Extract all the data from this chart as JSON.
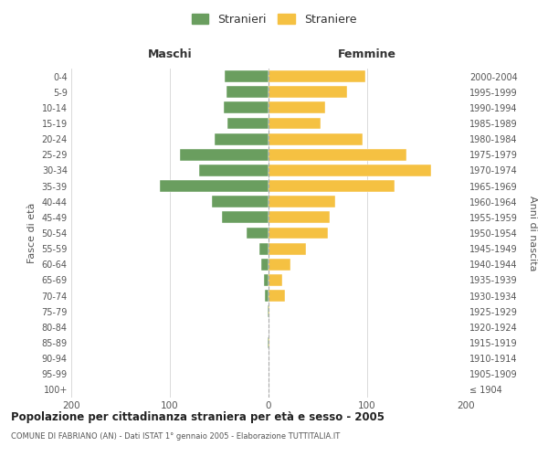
{
  "age_groups": [
    "100+",
    "95-99",
    "90-94",
    "85-89",
    "80-84",
    "75-79",
    "70-74",
    "65-69",
    "60-64",
    "55-59",
    "50-54",
    "45-49",
    "40-44",
    "35-39",
    "30-34",
    "25-29",
    "20-24",
    "15-19",
    "10-14",
    "5-9",
    "0-4"
  ],
  "birth_years": [
    "≤ 1904",
    "1905-1909",
    "1910-1914",
    "1915-1919",
    "1920-1924",
    "1925-1929",
    "1930-1934",
    "1935-1939",
    "1940-1944",
    "1945-1949",
    "1950-1954",
    "1955-1959",
    "1960-1964",
    "1965-1969",
    "1970-1974",
    "1975-1979",
    "1980-1984",
    "1985-1989",
    "1990-1994",
    "1995-1999",
    "2000-2004"
  ],
  "males": [
    0,
    0,
    0,
    1,
    0,
    1,
    4,
    5,
    7,
    9,
    22,
    47,
    57,
    110,
    70,
    90,
    55,
    42,
    45,
    43,
    44
  ],
  "females": [
    0,
    0,
    0,
    1,
    0,
    1,
    17,
    14,
    22,
    38,
    60,
    62,
    68,
    128,
    165,
    140,
    95,
    53,
    57,
    80,
    98
  ],
  "male_color": "#6a9e5f",
  "female_color": "#f5c142",
  "background_color": "#ffffff",
  "grid_color": "#cccccc",
  "title": "Popolazione per cittadinanza straniera per età e sesso - 2005",
  "subtitle": "COMUNE DI FABRIANO (AN) - Dati ISTAT 1° gennaio 2005 - Elaborazione TUTTITALIA.IT",
  "legend_stranieri": "Stranieri",
  "legend_straniere": "Straniere",
  "xlabel_left": "Maschi",
  "xlabel_right": "Femmine",
  "ylabel_left": "Fasce di età",
  "ylabel_right": "Anni di nascita",
  "xlim": 200,
  "dashed_line_color": "#aaaaaa"
}
